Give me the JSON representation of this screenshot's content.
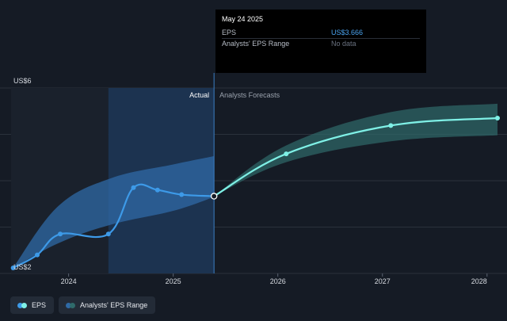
{
  "colors": {
    "background": "#151b25",
    "eps_line": "#3d9ae8",
    "forecast_line": "#7ff0e6",
    "range_past": "#2f6aa6",
    "range_future": "#2f6a6a"
  },
  "tooltip": {
    "date": "May 24 2025",
    "rows": [
      {
        "label": "EPS",
        "value": "US$3.666"
      },
      {
        "label": "Analysts' EPS Range",
        "value": "No data"
      }
    ]
  },
  "sections": {
    "actual": "Actual",
    "forecast": "Analysts Forecasts"
  },
  "legend": [
    {
      "label": "EPS",
      "icon": "eps-dots-icon",
      "colors": [
        "#3d9ae8",
        "#7ff0e6"
      ]
    },
    {
      "label": "Analysts' EPS Range",
      "icon": "range-dots-icon",
      "colors": [
        "#2f6aa6",
        "#2f6a6a"
      ]
    }
  ],
  "chart_data": {
    "type": "line",
    "title": "",
    "xlabel": "",
    "ylabel": "",
    "xlim": [
      2023.45,
      2028.1
    ],
    "ylim": [
      2,
      6
    ],
    "y_ticks": [
      {
        "value": 6,
        "label": "US$6"
      },
      {
        "value": 2,
        "label": "US$2"
      }
    ],
    "x_ticks": [
      {
        "value": 2024,
        "label": "2024"
      },
      {
        "value": 2025,
        "label": "2025"
      },
      {
        "value": 2026,
        "label": "2026"
      },
      {
        "value": 2027,
        "label": "2027"
      },
      {
        "value": 2028,
        "label": "2028"
      }
    ],
    "divider_x": 2025.39,
    "highlight_start_x": 2024.38,
    "series": [
      {
        "name": "EPS",
        "kind": "actual",
        "x": [
          2023.47,
          2023.7,
          2023.92,
          2024.38,
          2024.62,
          2024.85,
          2025.08,
          2025.39
        ],
        "y": [
          2.12,
          2.4,
          2.85,
          2.85,
          3.85,
          3.8,
          3.7,
          3.666
        ]
      },
      {
        "name": "EPS Forecast",
        "kind": "forecast",
        "x": [
          2025.39,
          2026.08,
          2027.08,
          2028.1
        ],
        "y": [
          3.666,
          4.58,
          5.19,
          5.35
        ]
      }
    ],
    "ranges": [
      {
        "name": "Analysts' EPS Range (past)",
        "x": [
          2023.47,
          2023.9,
          2024.4,
          2025.0,
          2025.39
        ],
        "low": [
          2.12,
          2.65,
          3.05,
          3.35,
          3.65
        ],
        "high": [
          2.12,
          3.45,
          4.05,
          4.35,
          4.53
        ]
      },
      {
        "name": "Analysts' EPS Range (forecast)",
        "x": [
          2025.39,
          2026.08,
          2027.08,
          2028.1
        ],
        "low": [
          3.666,
          4.4,
          4.85,
          4.98
        ],
        "high": [
          3.666,
          4.76,
          5.48,
          5.66
        ]
      }
    ]
  }
}
